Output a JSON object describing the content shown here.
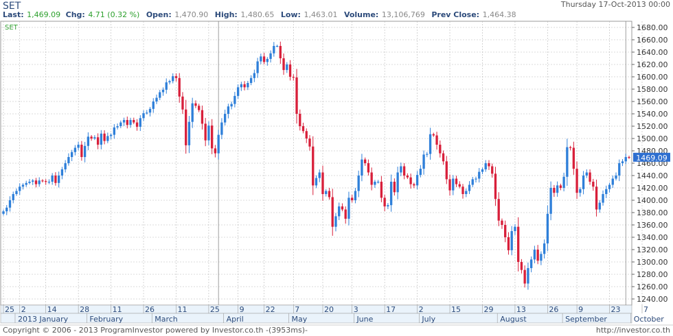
{
  "header": {
    "symbol": "SET",
    "datetime": "Thursday 17-Oct-2013 00:00",
    "last_label": "Last:",
    "last_value": "1,469.09",
    "chg_label": "Chg:",
    "chg_value": "4.71 (0.32 %)",
    "open_label": "Open:",
    "open_value": "1,470.90",
    "high_label": "High:",
    "high_value": "1,480.65",
    "low_label": "Low:",
    "low_value": "1,463.01",
    "volume_label": "Volume:",
    "volume_value": "13,106,769",
    "prev_label": "Prev Close:",
    "prev_value": "1,464.38"
  },
  "chart_data": {
    "type": "candlestick",
    "title": "SET",
    "ylim": [
      1230,
      1690
    ],
    "yticks": [
      1240,
      1260,
      1280,
      1300,
      1320,
      1340,
      1360,
      1380,
      1400,
      1420,
      1440,
      1460,
      1480,
      1500,
      1520,
      1540,
      1560,
      1580,
      1600,
      1620,
      1640,
      1660,
      1680
    ],
    "last_price_label": "1469.09",
    "grid": true,
    "day_ticks": [
      {
        "label": "25",
        "i": 0
      },
      {
        "label": "2",
        "i": 5
      },
      {
        "label": "14",
        "i": 13
      },
      {
        "label": "28",
        "i": 23
      },
      {
        "label": "11",
        "i": 33
      },
      {
        "label": "26",
        "i": 43
      },
      {
        "label": "11",
        "i": 53
      },
      {
        "label": "25",
        "i": 63
      },
      {
        "label": "9",
        "i": 72
      },
      {
        "label": "22",
        "i": 80
      },
      {
        "label": "7",
        "i": 89
      },
      {
        "label": "20",
        "i": 98
      },
      {
        "label": "3",
        "i": 107
      },
      {
        "label": "17",
        "i": 117
      },
      {
        "label": "2",
        "i": 127
      },
      {
        "label": "15",
        "i": 137
      },
      {
        "label": "29",
        "i": 147
      },
      {
        "label": "13",
        "i": 157
      },
      {
        "label": "26",
        "i": 167
      },
      {
        "label": "9",
        "i": 176
      },
      {
        "label": "23",
        "i": 186
      },
      {
        "label": "7",
        "i": 196
      }
    ],
    "month_ticks": [
      {
        "label": "2013 January",
        "i": 4
      },
      {
        "label": "February",
        "i": 26
      },
      {
        "label": "March",
        "i": 46
      },
      {
        "label": "April",
        "i": 68
      },
      {
        "label": "May",
        "i": 88
      },
      {
        "label": "June",
        "i": 108
      },
      {
        "label": "July",
        "i": 128
      },
      {
        "label": "August",
        "i": 152
      },
      {
        "label": "September",
        "i": 172
      },
      {
        "label": "October",
        "i": 193
      }
    ],
    "dividers": [
      66,
      191
    ],
    "colors": {
      "up": "#2e7fd9",
      "down": "#d81f3a",
      "grid": "#b8b8b8",
      "label": "#2c4a7a"
    },
    "close": [
      1382,
      1388,
      1400,
      1410,
      1415,
      1422,
      1425,
      1428,
      1430,
      1432,
      1426,
      1432,
      1431,
      1430,
      1430,
      1440,
      1428,
      1440,
      1450,
      1460,
      1470,
      1478,
      1485,
      1490,
      1470,
      1488,
      1503,
      1500,
      1502,
      1490,
      1508,
      1496,
      1504,
      1506,
      1518,
      1520,
      1526,
      1530,
      1522,
      1530,
      1526,
      1519,
      1533,
      1541,
      1542,
      1548,
      1560,
      1566,
      1575,
      1579,
      1591,
      1593,
      1601,
      1598,
      1568,
      1547,
      1489,
      1527,
      1557,
      1553,
      1546,
      1524,
      1497,
      1521,
      1484,
      1476,
      1506,
      1526,
      1540,
      1552,
      1556,
      1569,
      1583,
      1588,
      1583,
      1590,
      1598,
      1606,
      1625,
      1633,
      1624,
      1629,
      1638,
      1650,
      1650,
      1630,
      1611,
      1620,
      1600,
      1599,
      1540,
      1520,
      1512,
      1500,
      1487,
      1424,
      1436,
      1445,
      1410,
      1415,
      1405,
      1357,
      1374,
      1390,
      1385,
      1370,
      1404,
      1400,
      1415,
      1440,
      1466,
      1460,
      1445,
      1425,
      1430,
      1430,
      1404,
      1390,
      1392,
      1430,
      1413,
      1445,
      1455,
      1440,
      1437,
      1426,
      1424,
      1441,
      1451,
      1474,
      1475,
      1507,
      1505,
      1490,
      1476,
      1463,
      1434,
      1416,
      1435,
      1426,
      1422,
      1410,
      1415,
      1425,
      1434,
      1435,
      1446,
      1450,
      1460,
      1455,
      1443,
      1402,
      1367,
      1360,
      1340,
      1319,
      1350,
      1357,
      1300,
      1287,
      1265,
      1290,
      1304,
      1320,
      1302,
      1313,
      1330,
      1378,
      1420,
      1412,
      1424,
      1420,
      1438,
      1486,
      1485,
      1451,
      1412,
      1418,
      1440,
      1445,
      1430,
      1422,
      1385,
      1396,
      1410,
      1418,
      1425,
      1435,
      1440,
      1460,
      1463,
      1470,
      1469
    ]
  },
  "footer": {
    "copyright": "Copyright © 2006 - 2013 ProgramInvestor powered by Investor.co.th  -(3953ms)-",
    "url": "http://investor.co.th"
  }
}
